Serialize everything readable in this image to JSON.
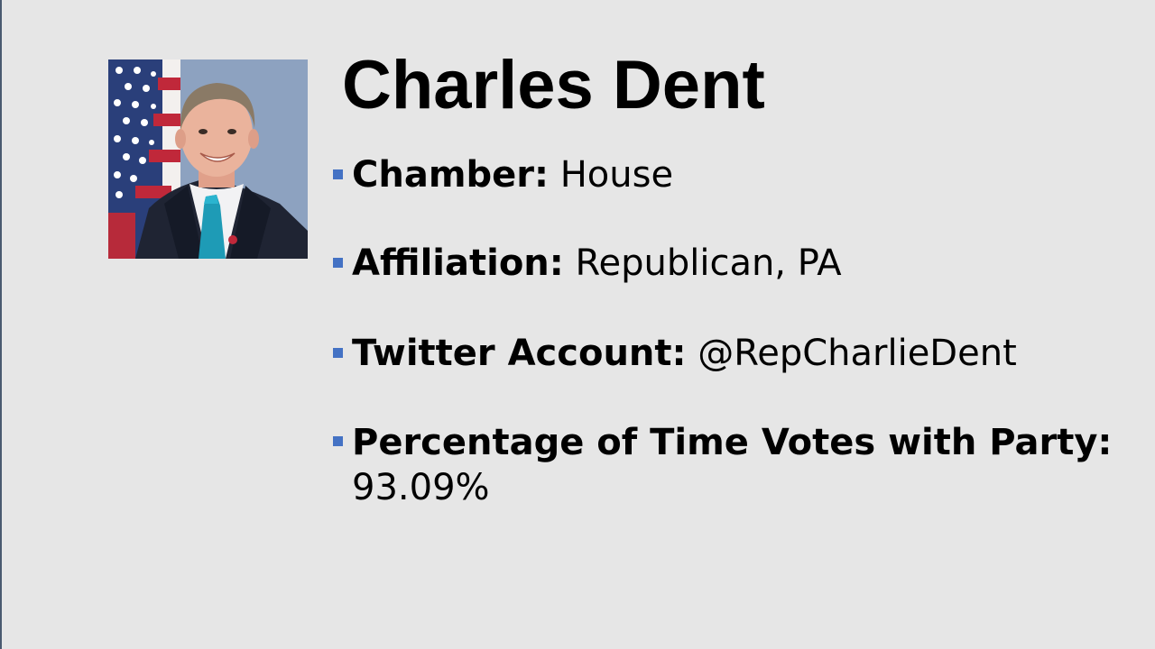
{
  "slide": {
    "title": "Charles Dent",
    "portrait_alt": "portrait-photo",
    "bullets": [
      {
        "label": "Chamber:",
        "value": "House"
      },
      {
        "label": "Affiliation:",
        "value": "Republican, PA"
      },
      {
        "label": "Twitter Account:",
        "value": "@RepCharlieDent"
      },
      {
        "label": "Percentage of Time Votes with Party:",
        "value": "93.09%"
      }
    ]
  },
  "colors": {
    "background": "#e6e6e6",
    "bullet": "#4472c4",
    "text": "#000000"
  }
}
